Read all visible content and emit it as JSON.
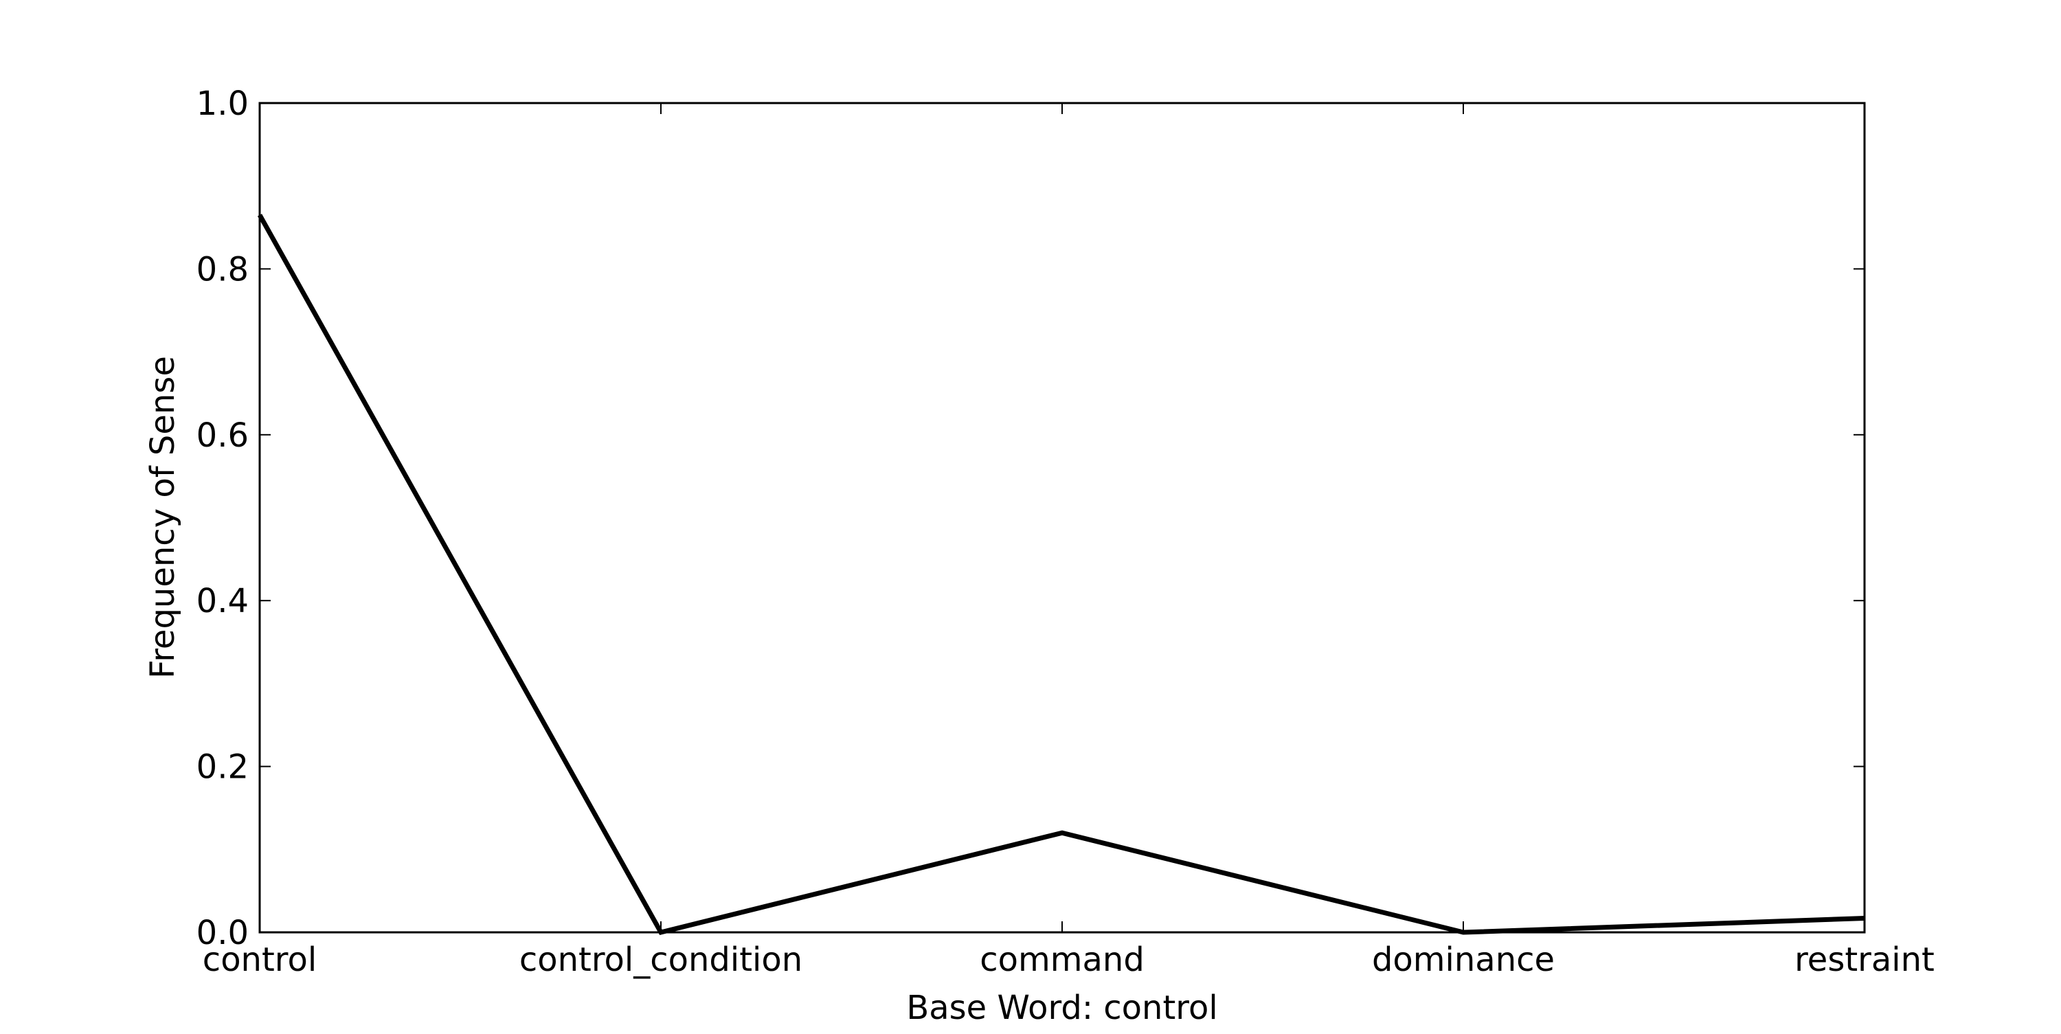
{
  "chart_data": {
    "type": "line",
    "title": "",
    "xlabel": "Base Word: control",
    "ylabel": "Frequency of Sense",
    "categories": [
      "control",
      "control_condition",
      "command",
      "dominance",
      "restraint"
    ],
    "series": [
      {
        "values": [
          0.865,
          0.0,
          0.12,
          0.0,
          0.017
        ]
      }
    ],
    "ylim": [
      0.0,
      1.0
    ],
    "yticks": [
      "0.0",
      "0.2",
      "0.4",
      "0.6",
      "0.8",
      "1.0"
    ],
    "grid": false,
    "line_color": "#000000"
  }
}
